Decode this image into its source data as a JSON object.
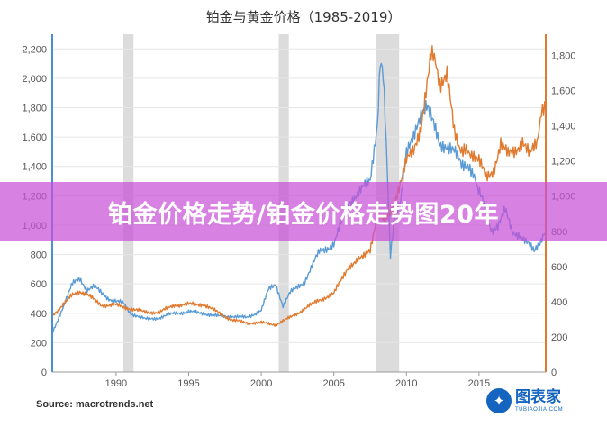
{
  "chart_data": {
    "type": "line",
    "title": "铂金与黄金价格（1985-2019）",
    "source": "Source: macrotrends.net",
    "x_ticks": [
      "1990",
      "1995",
      "2000",
      "2005",
      "2010",
      "2015"
    ],
    "xlim": [
      1985.6,
      2019.6
    ],
    "left_axis": {
      "ylim": [
        0,
        2300
      ],
      "ticks": [
        "0",
        "200",
        "400",
        "600",
        "800",
        "1,000",
        "1,200",
        "1,400",
        "1,600",
        "1,800",
        "2,000",
        "2,200"
      ]
    },
    "right_axis": {
      "ylim": [
        0,
        1920
      ],
      "ticks": [
        "0",
        "200",
        "400",
        "600",
        "800",
        "1,000",
        "1,200",
        "1,400",
        "1,600",
        "1,800"
      ]
    },
    "recessions": [
      [
        1990.5,
        1991.2
      ],
      [
        2001.2,
        2001.9
      ],
      [
        2007.9,
        2009.5
      ]
    ],
    "series": [
      {
        "color": "#5b9bd5",
        "axis": "left",
        "x": [
          1985.6,
          1986.0,
          1986.5,
          1987.0,
          1987.5,
          1988.0,
          1988.5,
          1989.0,
          1989.5,
          1990.0,
          1990.5,
          1991.0,
          1991.5,
          1992.0,
          1993.0,
          1994.0,
          1995.0,
          1996.0,
          1997.0,
          1998.0,
          1999.0,
          2000.0,
          2000.5,
          2001.0,
          2001.5,
          2002.0,
          2003.0,
          2004.0,
          2005.0,
          2006.0,
          2006.5,
          2007.0,
          2007.5,
          2008.0,
          2008.2,
          2008.4,
          2008.6,
          2008.9,
          2009.2,
          2009.6,
          2010.0,
          2010.5,
          2011.0,
          2011.4,
          2011.8,
          2012.3,
          2012.8,
          2013.3,
          2013.8,
          2014.3,
          2014.9,
          2015.3,
          2015.9,
          2016.3,
          2016.8,
          2017.3,
          2017.8,
          2018.3,
          2018.8,
          2019.2,
          2019.6
        ],
        "y": [
          270,
          360,
          480,
          600,
          640,
          560,
          580,
          540,
          500,
          480,
          470,
          400,
          380,
          360,
          370,
          400,
          410,
          400,
          380,
          380,
          370,
          420,
          560,
          600,
          450,
          540,
          620,
          820,
          870,
          1150,
          1200,
          1250,
          1300,
          1700,
          2150,
          2050,
          1600,
          800,
          1050,
          1150,
          1500,
          1580,
          1750,
          1800,
          1700,
          1550,
          1550,
          1500,
          1400,
          1420,
          1250,
          1150,
          950,
          1000,
          1100,
          950,
          940,
          880,
          820,
          860,
          960
        ]
      },
      {
        "color": "#e07a2e",
        "axis": "right",
        "x": [
          1985.6,
          1986.0,
          1987.0,
          1987.5,
          1988.0,
          1989.0,
          1990.0,
          1991.0,
          1992.0,
          1993.0,
          1994.0,
          1995.0,
          1996.0,
          1997.0,
          1998.0,
          1999.0,
          2000.0,
          2001.0,
          2002.0,
          2003.0,
          2004.0,
          2005.0,
          2006.0,
          2007.0,
          2007.5,
          2008.0,
          2008.5,
          2009.0,
          2010.0,
          2010.5,
          2011.0,
          2011.7,
          2012.3,
          2012.8,
          2013.3,
          2013.9,
          2014.5,
          2015.0,
          2015.5,
          2016.0,
          2016.5,
          2017.0,
          2017.5,
          2018.0,
          2018.5,
          2019.0,
          2019.3,
          2019.6
        ],
        "y": [
          320,
          350,
          440,
          460,
          440,
          380,
          380,
          360,
          340,
          340,
          380,
          385,
          385,
          340,
          295,
          280,
          280,
          270,
          310,
          360,
          410,
          445,
          600,
          650,
          700,
          900,
          850,
          920,
          1200,
          1250,
          1400,
          1830,
          1650,
          1700,
          1350,
          1250,
          1250,
          1200,
          1100,
          1150,
          1300,
          1230,
          1260,
          1320,
          1230,
          1300,
          1500,
          1480
        ]
      }
    ]
  },
  "banner": {
    "text": "铂金价格走势/铂金价格走势图20年"
  },
  "watermark": {
    "name": "图表家",
    "sub": "TUBIAOJIA.COM"
  }
}
